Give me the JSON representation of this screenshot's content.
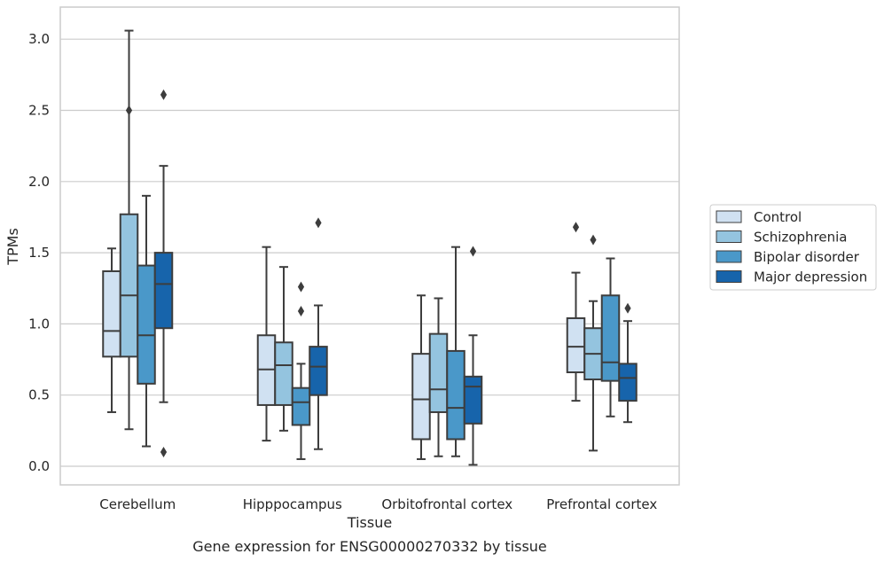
{
  "chart_data": {
    "type": "box",
    "xlabel": "Tissue",
    "ylabel": "TPMs",
    "caption": "Gene expression for ENSG00000270332 by tissue",
    "ylim": [
      -0.13,
      3.22
    ],
    "yticks": [
      "0.0",
      "0.5",
      "1.0",
      "1.5",
      "2.0",
      "2.5",
      "3.0"
    ],
    "grid": true,
    "legend_position": "right",
    "categories": [
      "Cerebellum",
      "Hipppocampus",
      "Orbitofrontal cortex",
      "Prefrontal cortex"
    ],
    "series": [
      {
        "name": "Control",
        "color": "#d0e1f2",
        "boxes": [
          {
            "whisker_low": 0.38,
            "q1": 0.77,
            "median": 0.95,
            "q3": 1.37,
            "whisker_high": 1.53,
            "outliers": []
          },
          {
            "whisker_low": 0.18,
            "q1": 0.43,
            "median": 0.68,
            "q3": 0.92,
            "whisker_high": 1.54,
            "outliers": []
          },
          {
            "whisker_low": 0.05,
            "q1": 0.19,
            "median": 0.47,
            "q3": 0.79,
            "whisker_high": 1.2,
            "outliers": []
          },
          {
            "whisker_low": 0.46,
            "q1": 0.66,
            "median": 0.84,
            "q3": 1.04,
            "whisker_high": 1.36,
            "outliers": [
              1.68
            ]
          }
        ]
      },
      {
        "name": "Schizophrenia",
        "color": "#94c4df",
        "boxes": [
          {
            "whisker_low": 0.26,
            "q1": 0.77,
            "median": 1.2,
            "q3": 1.77,
            "whisker_high": 3.06,
            "outliers": [
              2.5
            ]
          },
          {
            "whisker_low": 0.25,
            "q1": 0.43,
            "median": 0.71,
            "q3": 0.87,
            "whisker_high": 1.4,
            "outliers": []
          },
          {
            "whisker_low": 0.07,
            "q1": 0.38,
            "median": 0.54,
            "q3": 0.93,
            "whisker_high": 1.18,
            "outliers": []
          },
          {
            "whisker_low": 0.11,
            "q1": 0.61,
            "median": 0.79,
            "q3": 0.97,
            "whisker_high": 1.16,
            "outliers": [
              1.59
            ]
          }
        ]
      },
      {
        "name": "Bipolar disorder",
        "color": "#4a98c9",
        "boxes": [
          {
            "whisker_low": 0.14,
            "q1": 0.58,
            "median": 0.92,
            "q3": 1.41,
            "whisker_high": 1.9,
            "outliers": []
          },
          {
            "whisker_low": 0.05,
            "q1": 0.29,
            "median": 0.45,
            "q3": 0.55,
            "whisker_high": 0.72,
            "outliers": [
              1.09,
              1.26
            ]
          },
          {
            "whisker_low": 0.07,
            "q1": 0.19,
            "median": 0.41,
            "q3": 0.81,
            "whisker_high": 1.54,
            "outliers": []
          },
          {
            "whisker_low": 0.35,
            "q1": 0.6,
            "median": 0.73,
            "q3": 1.2,
            "whisker_high": 1.46,
            "outliers": []
          }
        ]
      },
      {
        "name": "Major depression",
        "color": "#1764ab",
        "boxes": [
          {
            "whisker_low": 0.45,
            "q1": 0.97,
            "median": 1.28,
            "q3": 1.5,
            "whisker_high": 2.11,
            "outliers": [
              0.1,
              2.61
            ]
          },
          {
            "whisker_low": 0.12,
            "q1": 0.5,
            "median": 0.7,
            "q3": 0.84,
            "whisker_high": 1.13,
            "outliers": [
              1.71
            ]
          },
          {
            "whisker_low": 0.01,
            "q1": 0.3,
            "median": 0.56,
            "q3": 0.63,
            "whisker_high": 0.92,
            "outliers": [
              1.51
            ]
          },
          {
            "whisker_low": 0.31,
            "q1": 0.46,
            "median": 0.62,
            "q3": 0.72,
            "whisker_high": 1.02,
            "outliers": [
              1.11
            ]
          }
        ]
      }
    ]
  }
}
